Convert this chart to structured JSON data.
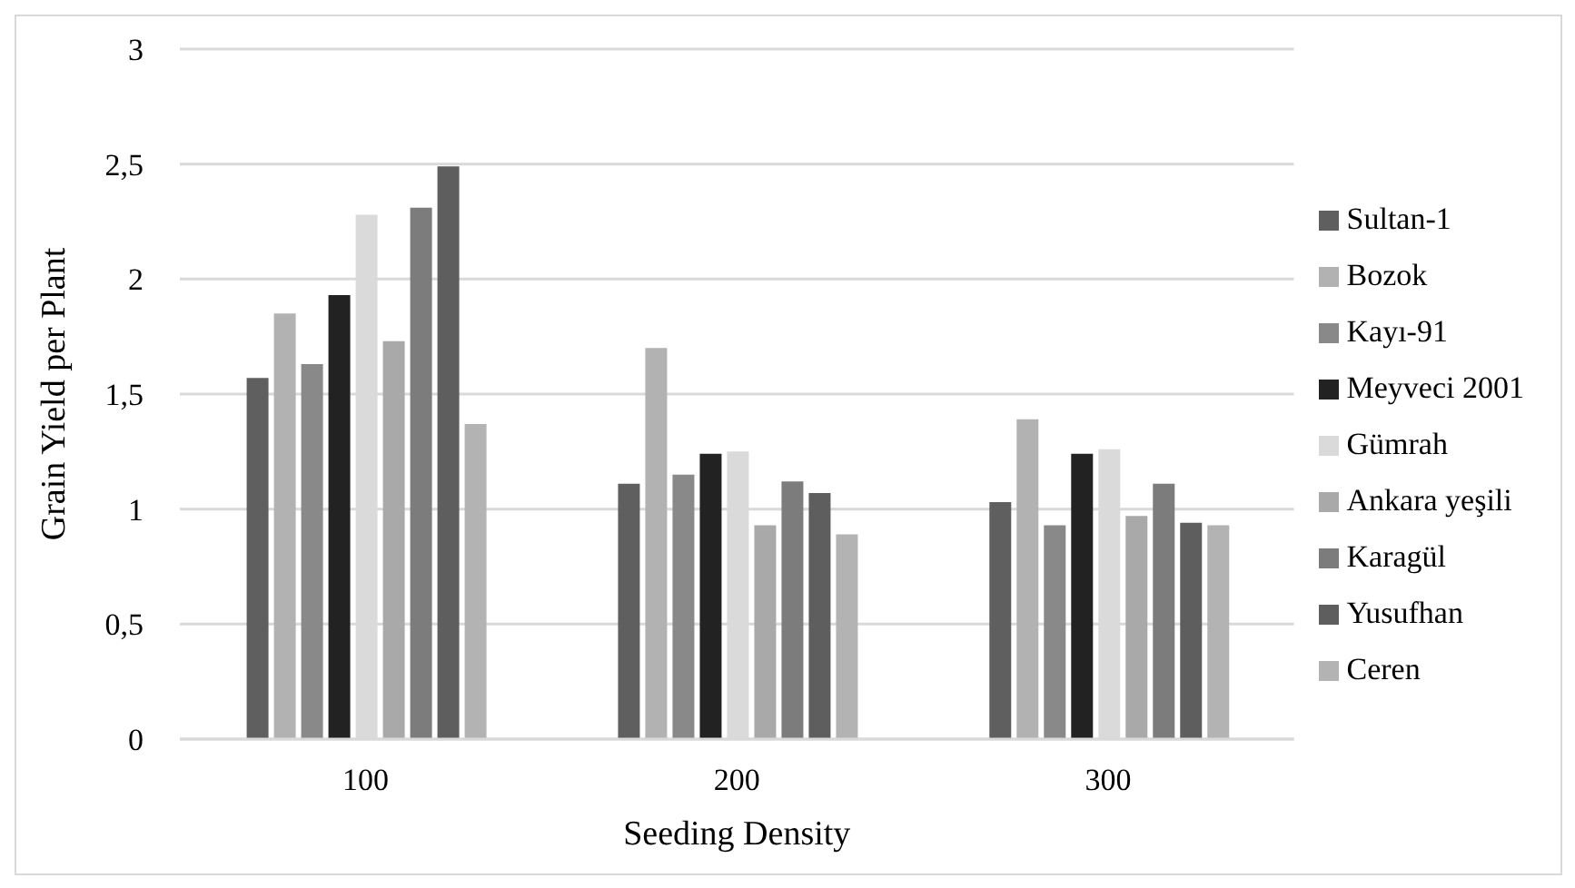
{
  "chart_data": {
    "type": "bar",
    "xlabel": "Seeding Density",
    "ylabel": "Grain Yield per Plant",
    "categories": [
      "100",
      "200",
      "300"
    ],
    "series": [
      {
        "name": "Sultan-1",
        "color": "#5f5f5f",
        "values": [
          1.57,
          1.11,
          1.03
        ]
      },
      {
        "name": "Bozok",
        "color": "#b2b2b2",
        "values": [
          1.85,
          1.7,
          1.39
        ]
      },
      {
        "name": "Kayı-91",
        "color": "#898989",
        "values": [
          1.63,
          1.15,
          0.93
        ]
      },
      {
        "name": "Meyveci 2001",
        "color": "#222222",
        "values": [
          1.93,
          1.24,
          1.24
        ]
      },
      {
        "name": "Gümrah",
        "color": "#dadada",
        "values": [
          2.28,
          1.25,
          1.26
        ]
      },
      {
        "name": "Ankara yeşili",
        "color": "#a9a9a9",
        "values": [
          1.73,
          0.93,
          0.97
        ]
      },
      {
        "name": "Karagül",
        "color": "#7c7c7c",
        "values": [
          2.31,
          1.12,
          1.11
        ]
      },
      {
        "name": "Yusufhan",
        "color": "#5e5e5e",
        "values": [
          2.49,
          1.07,
          0.94
        ]
      },
      {
        "name": "Ceren",
        "color": "#b3b3b3",
        "values": [
          1.37,
          0.89,
          0.93
        ]
      }
    ],
    "ylim": [
      0,
      3
    ],
    "yticks": [
      0,
      {
        "value": 0.5,
        "label": "0,5"
      },
      1,
      {
        "value": 1.5,
        "label": "1,5"
      },
      2,
      {
        "value": 2.5,
        "label": "2,5"
      },
      3
    ],
    "grid": "y",
    "legend": "right"
  }
}
